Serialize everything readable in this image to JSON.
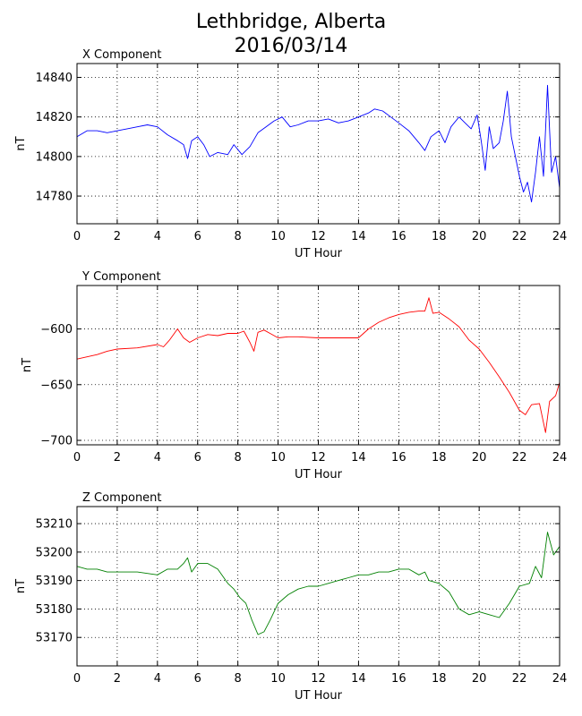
{
  "title": {
    "line1": "Lethbridge, Alberta",
    "line2": "2016/03/14"
  },
  "chart_data": [
    {
      "type": "line",
      "title": "X Component",
      "xlabel": "UT Hour",
      "ylabel": "nT",
      "xlim": [
        0,
        24
      ],
      "ylim": [
        14766,
        14847
      ],
      "xticks": [
        0,
        2,
        4,
        6,
        8,
        10,
        12,
        14,
        16,
        18,
        20,
        22,
        24
      ],
      "yticks": [
        14780,
        14800,
        14820,
        14840
      ],
      "grid": true,
      "color": "#0000ff",
      "series": [
        {
          "x": [
            0,
            0.5,
            1,
            1.5,
            2,
            2.5,
            3,
            3.5,
            4,
            4.5,
            5,
            5.3,
            5.5,
            5.7,
            6,
            6.3,
            6.6,
            7,
            7.5,
            7.8,
            8.2,
            8.6,
            9,
            9.4,
            9.8,
            10.2,
            10.6,
            11,
            11.5,
            12,
            12.5,
            13,
            13.5,
            14,
            14.5,
            14.8,
            15.2,
            15.6,
            16,
            16.5,
            17,
            17.3,
            17.6,
            18,
            18.3,
            18.6,
            19,
            19.3,
            19.6,
            19.9,
            20.1,
            20.3,
            20.5,
            20.7,
            21,
            21.2,
            21.4,
            21.6,
            21.8,
            22,
            22.2,
            22.4,
            22.6,
            22.8,
            23,
            23.2,
            23.4,
            23.6,
            23.8,
            24
          ],
          "y": [
            14810,
            14813,
            14813,
            14812,
            14813,
            14814,
            14815,
            14816,
            14815,
            14811,
            14808,
            14806,
            14799,
            14808,
            14810,
            14806,
            14800,
            14802,
            14801,
            14806,
            14801,
            14805,
            14812,
            14815,
            14818,
            14820,
            14815,
            14816,
            14818,
            14818,
            14819,
            14817,
            14818,
            14820,
            14822,
            14824,
            14823,
            14820,
            14817,
            14813,
            14807,
            14803,
            14810,
            14813,
            14807,
            14815,
            14820,
            14817,
            14814,
            14821,
            14808,
            14793,
            14815,
            14804,
            14807,
            14818,
            14833,
            14810,
            14800,
            14790,
            14782,
            14787,
            14777,
            14792,
            14810,
            14790,
            14836,
            14792,
            14800,
            14784
          ]
        }
      ]
    },
    {
      "type": "line",
      "title": "Y Component",
      "xlabel": "UT Hour",
      "ylabel": "nT",
      "xlim": [
        0,
        24
      ],
      "ylim": [
        -704,
        -561
      ],
      "xticks": [
        0,
        2,
        4,
        6,
        8,
        10,
        12,
        14,
        16,
        18,
        20,
        22,
        24
      ],
      "yticks": [
        -600,
        -650,
        -700
      ],
      "grid": true,
      "color": "#ff0000",
      "series": [
        {
          "x": [
            0,
            0.5,
            1,
            1.5,
            2,
            3,
            4,
            4.3,
            4.6,
            5,
            5.3,
            5.6,
            6,
            6.5,
            7,
            7.5,
            8,
            8.3,
            8.6,
            8.8,
            9,
            9.3,
            9.6,
            10,
            10.5,
            11,
            12,
            13,
            14,
            14.5,
            15,
            15.5,
            16,
            16.5,
            17,
            17.3,
            17.5,
            17.7,
            18,
            18.5,
            19,
            19.5,
            20,
            20.5,
            21,
            21.5,
            22,
            22.3,
            22.6,
            23,
            23.3,
            23.5,
            23.8,
            24
          ],
          "y": [
            -627,
            -625,
            -623,
            -620,
            -618,
            -617,
            -614,
            -616,
            -610,
            -600,
            -608,
            -612,
            -608,
            -605,
            -606,
            -604,
            -604,
            -602,
            -612,
            -620,
            -603,
            -601,
            -604,
            -608,
            -607,
            -607,
            -608,
            -608,
            -608,
            -600,
            -594,
            -590,
            -587,
            -585,
            -584,
            -584,
            -572,
            -586,
            -585,
            -591,
            -598,
            -610,
            -618,
            -630,
            -643,
            -657,
            -673,
            -677,
            -668,
            -667,
            -693,
            -665,
            -660,
            -648
          ]
        }
      ]
    },
    {
      "type": "line",
      "title": "Z Component",
      "xlabel": "UT Hour",
      "ylabel": "nT",
      "xlim": [
        0,
        24
      ],
      "ylim": [
        53160,
        53216
      ],
      "xticks": [
        0,
        2,
        4,
        6,
        8,
        10,
        12,
        14,
        16,
        18,
        20,
        22,
        24
      ],
      "yticks": [
        53170,
        53180,
        53190,
        53200,
        53210
      ],
      "grid": true,
      "color": "#008000",
      "series": [
        {
          "x": [
            0,
            0.5,
            1,
            1.5,
            2,
            3,
            4,
            4.5,
            5,
            5.3,
            5.5,
            5.7,
            6,
            6.5,
            7,
            7.5,
            7.8,
            8.1,
            8.4,
            8.7,
            9,
            9.3,
            9.6,
            10,
            10.5,
            11,
            11.5,
            12,
            12.5,
            13,
            13.5,
            14,
            14.5,
            15,
            15.5,
            16,
            16.5,
            17,
            17.3,
            17.5,
            18,
            18.5,
            19,
            19.5,
            20,
            20.5,
            21,
            21.5,
            22,
            22.5,
            22.8,
            23.1,
            23.4,
            23.7,
            24
          ],
          "y": [
            53195,
            53194,
            53194,
            53193,
            53193,
            53193,
            53192,
            53194,
            53194,
            53196,
            53198,
            53193,
            53196,
            53196,
            53194,
            53189,
            53187,
            53184,
            53182,
            53176,
            53171,
            53172,
            53176,
            53182,
            53185,
            53187,
            53188,
            53188,
            53189,
            53190,
            53191,
            53192,
            53192,
            53193,
            53193,
            53194,
            53194,
            53192,
            53193,
            53190,
            53189,
            53186,
            53180,
            53178,
            53179,
            53178,
            53177,
            53182,
            53188,
            53189,
            53195,
            53191,
            53207,
            53199,
            53202
          ]
        }
      ]
    }
  ]
}
